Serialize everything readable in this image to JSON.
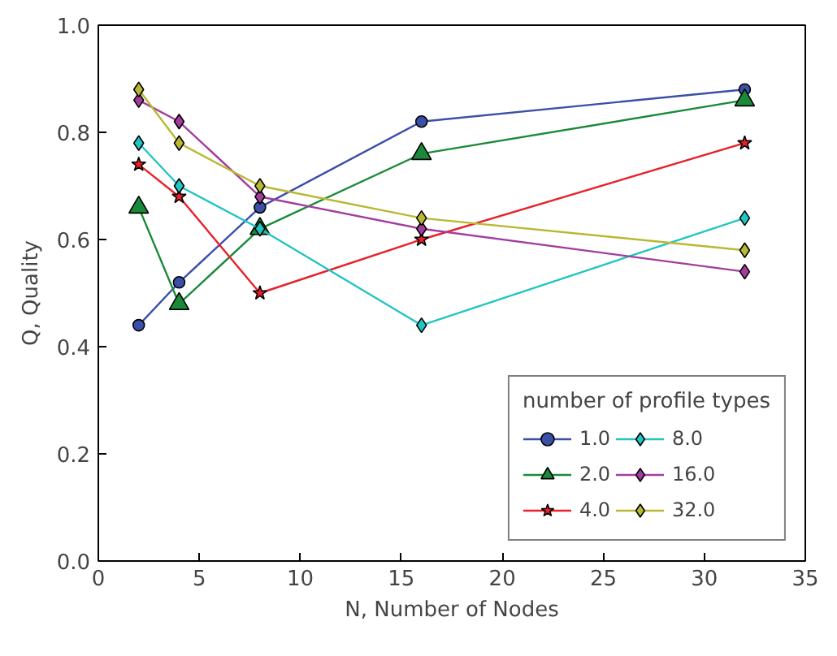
{
  "chart_data": {
    "type": "line",
    "xlabel": "N, Number of Nodes",
    "ylabel": "Q, Quality",
    "legend_title": "number of profile types",
    "legend": "bottom right",
    "grid": false,
    "line_style": "solid",
    "x": [
      2,
      4,
      8,
      16,
      32
    ],
    "xlim": [
      0,
      35
    ],
    "xticks": [
      0,
      5,
      10,
      15,
      20,
      25,
      30,
      35
    ],
    "ylim": [
      0,
      1
    ],
    "yticks": [
      {
        "value": 0,
        "label": "0.0"
      },
      {
        "value": 0.2,
        "label": "0.2"
      },
      {
        "value": 0.4,
        "label": "0.4"
      },
      {
        "value": 0.6,
        "label": "0.6"
      },
      {
        "value": 0.8,
        "label": "0.8"
      },
      {
        "value": 1,
        "label": "1.0"
      }
    ],
    "series": [
      {
        "name": "1.0",
        "color": "#3b4fa8",
        "marker": "circle",
        "values": [
          0.44,
          0.52,
          0.66,
          0.82,
          0.88
        ]
      },
      {
        "name": "2.0",
        "color": "#1a8a3a",
        "marker": "triangle",
        "values": [
          0.66,
          0.48,
          0.62,
          0.76,
          0.86
        ]
      },
      {
        "name": "4.0",
        "color": "#e8202a",
        "marker": "star",
        "values": [
          0.74,
          0.68,
          0.5,
          0.6,
          0.78
        ]
      },
      {
        "name": "8.0",
        "color": "#22c4c4",
        "marker": "diamond",
        "values": [
          0.78,
          0.7,
          0.62,
          0.44,
          0.64
        ]
      },
      {
        "name": "16.0",
        "color": "#a23d9e",
        "marker": "diamond",
        "values": [
          0.86,
          0.82,
          0.68,
          0.62,
          0.54
        ]
      },
      {
        "name": "32.0",
        "color": "#b8b832",
        "marker": "diamond",
        "values": [
          0.88,
          0.78,
          0.7,
          0.64,
          0.58
        ]
      }
    ]
  }
}
